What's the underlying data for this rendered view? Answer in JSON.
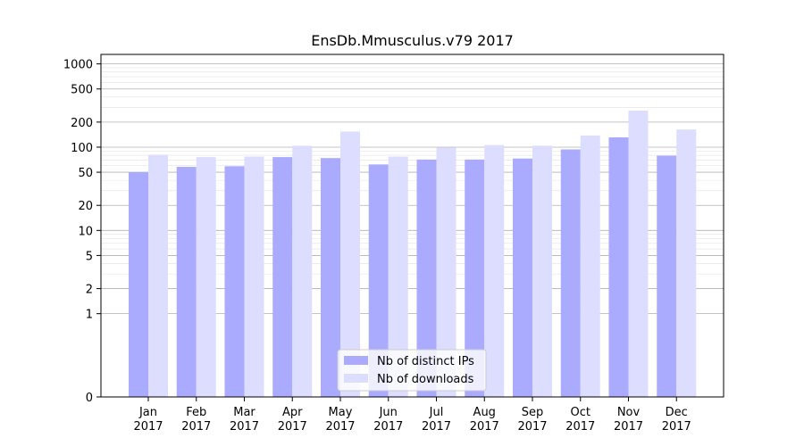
{
  "chart_data": {
    "type": "bar",
    "title": "EnsDb.Mmusculus.v79 2017",
    "xlabel": "",
    "ylabel": "",
    "yscale": "symlog",
    "ylim": [
      0,
      1300
    ],
    "yticks": [
      0,
      1,
      2,
      5,
      10,
      20,
      50,
      100,
      200,
      500,
      1000
    ],
    "ytick_labels": [
      "0",
      "1",
      "2",
      "5",
      "10",
      "20",
      "50",
      "100",
      "200",
      "500",
      "1000"
    ],
    "grid": true,
    "legend_position": "bottom-center",
    "categories": [
      {
        "month": "Jan",
        "year": "2017"
      },
      {
        "month": "Feb",
        "year": "2017"
      },
      {
        "month": "Mar",
        "year": "2017"
      },
      {
        "month": "Apr",
        "year": "2017"
      },
      {
        "month": "May",
        "year": "2017"
      },
      {
        "month": "Jun",
        "year": "2017"
      },
      {
        "month": "Jul",
        "year": "2017"
      },
      {
        "month": "Aug",
        "year": "2017"
      },
      {
        "month": "Sep",
        "year": "2017"
      },
      {
        "month": "Oct",
        "year": "2017"
      },
      {
        "month": "Nov",
        "year": "2017"
      },
      {
        "month": "Dec",
        "year": "2017"
      }
    ],
    "series": [
      {
        "name": "Nb of distinct IPs",
        "color": "#aaaaff",
        "values": [
          50,
          58,
          59,
          76,
          74,
          62,
          71,
          71,
          73,
          94,
          131,
          79
        ]
      },
      {
        "name": "Nb of downloads",
        "color": "#ddddff",
        "values": [
          81,
          76,
          77,
          104,
          154,
          77,
          99,
          106,
          104,
          138,
          275,
          163
        ]
      }
    ]
  }
}
